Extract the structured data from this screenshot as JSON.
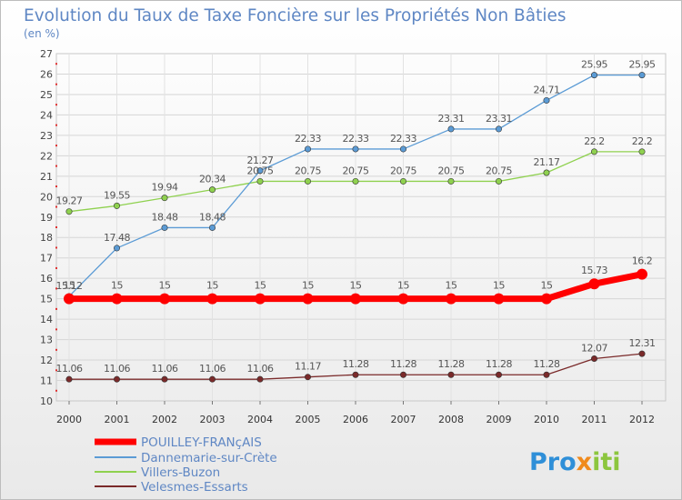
{
  "chart_data": {
    "type": "line",
    "title": "Evolution du Taux de Taxe Foncière sur les Propriétés Non Bâties",
    "subtitle": "(en %)",
    "x": [
      "2000",
      "2001",
      "2002",
      "2003",
      "2004",
      "2005",
      "2006",
      "2007",
      "2008",
      "2009",
      "2010",
      "2011",
      "2012"
    ],
    "ylim": [
      10,
      27
    ],
    "yticks": [
      10,
      11,
      12,
      13,
      14,
      15,
      16,
      17,
      18,
      19,
      20,
      21,
      22,
      23,
      24,
      25,
      26,
      27
    ],
    "grid": true,
    "legend_position": "bottom-left",
    "series": [
      {
        "name": "POUILLEY-FRANçAIS",
        "color": "#ff0000",
        "values": [
          15,
          15,
          15,
          15,
          15,
          15,
          15,
          15,
          15,
          15,
          15,
          15.73,
          16.2
        ],
        "labels": [
          "15",
          "15",
          "15",
          "15",
          "15",
          "15",
          "15",
          "15",
          "15",
          "15",
          "15",
          "15.73",
          "16.2"
        ]
      },
      {
        "name": "Dannemarie-sur-Crète",
        "color": "#5b9bd5",
        "values": [
          15.12,
          17.48,
          18.48,
          18.48,
          21.27,
          22.33,
          22.33,
          22.33,
          23.31,
          23.31,
          24.71,
          25.95,
          25.95
        ],
        "labels": [
          "15.12",
          "17.48",
          "18.48",
          "18.48",
          "21.27",
          "22.33",
          "22.33",
          "22.33",
          "23.31",
          "23.31",
          "24.71",
          "25.95",
          "25.95"
        ]
      },
      {
        "name": "Villers-Buzon",
        "color": "#8fd14f",
        "values": [
          19.27,
          19.55,
          19.94,
          20.34,
          20.75,
          20.75,
          20.75,
          20.75,
          20.75,
          20.75,
          21.17,
          22.2,
          22.2
        ],
        "labels": [
          "19.27",
          "19.55",
          "19.94",
          "20.34",
          "20.75",
          "20.75",
          "20.75",
          "20.75",
          "20.75",
          "20.75",
          "21.17",
          "22.2",
          "22.2"
        ]
      },
      {
        "name": "Velesmes-Essarts",
        "color": "#7a2a2a",
        "values": [
          11.06,
          11.06,
          11.06,
          11.06,
          11.06,
          11.17,
          11.28,
          11.28,
          11.28,
          11.28,
          11.28,
          12.07,
          12.31
        ],
        "labels": [
          "11.06",
          "11.06",
          "11.06",
          "11.06",
          "11.06",
          "11.17",
          "11.28",
          "11.28",
          "11.28",
          "11.28",
          "11.28",
          "12.07",
          "12.31"
        ]
      }
    ]
  },
  "logo": {
    "text": "Proxiti"
  }
}
